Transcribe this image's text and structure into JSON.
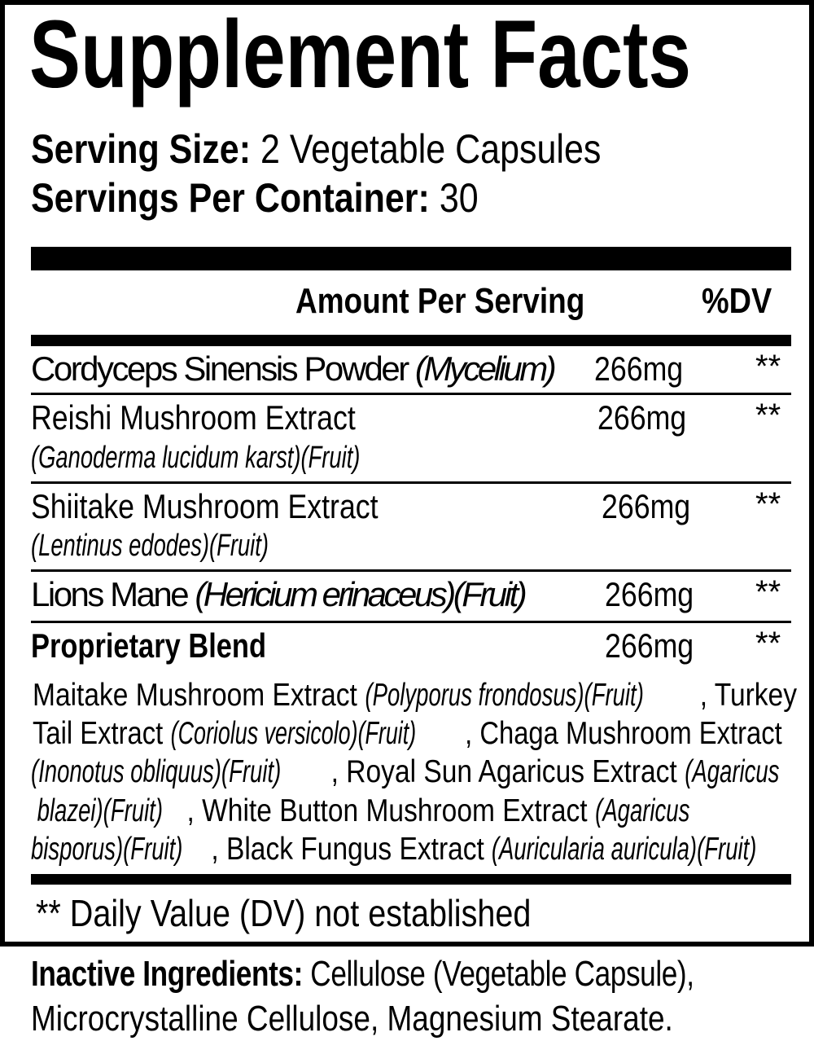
{
  "title": "Supplement Facts",
  "serving_size": {
    "label": "Serving Size:",
    "value": "2 Vegetable Capsules"
  },
  "servings_per_container": {
    "label": "Servings Per Container:",
    "value": "30"
  },
  "header": {
    "amount": "Amount Per Serving",
    "dv": "%DV"
  },
  "rows": [
    {
      "name": "Cordyceps Sinensis Powder",
      "latin": "(Mycelium)",
      "amount": "266mg",
      "dv": "**"
    },
    {
      "name": "Reishi Mushroom Extract",
      "latin": "(Ganoderma lucidum karst)(Fruit)",
      "amount": "266mg",
      "dv": "**"
    },
    {
      "name": "Shiitake Mushroom Extract",
      "latin": "(Lentinus edodes)(Fruit)",
      "amount": "266mg",
      "dv": "**"
    },
    {
      "name": "Lions Mane",
      "latin": "(Hericium erinaceus)(Fruit)",
      "amount": "266mg",
      "dv": "**"
    },
    {
      "name": "Proprietary Blend",
      "amount": "266mg",
      "dv": "**"
    }
  ],
  "blend_lines": [
    [
      "Maitake Mushroom Extract ",
      "(Polyporus frondosus)(Fruit)",
      ", Turkey"
    ],
    [
      "Tail Extract ",
      "(Coriolus versicolo)(Fruit)",
      ", Chaga Mushroom Extract"
    ],
    [
      "",
      "(Inonotus obliquus)(Fruit)",
      ", Royal Sun Agaricus Extract ",
      "(Agaricus"
    ],
    [
      "",
      " blazei)(Fruit)",
      ", White Button Mushroom Extract ",
      "(Agaricus"
    ],
    [
      "",
      "bisporus)(Fruit)",
      ", Black Fungus Extract ",
      "(Auricularia auricula)(Fruit)"
    ]
  ],
  "footnote": "** Daily Value (DV) not established",
  "inactive": {
    "label": "Inactive Ingredients:",
    "line1": "Cellulose (Vegetable Capsule),",
    "line2": "Microcrystalline Cellulose, Magnesium Stearate."
  }
}
